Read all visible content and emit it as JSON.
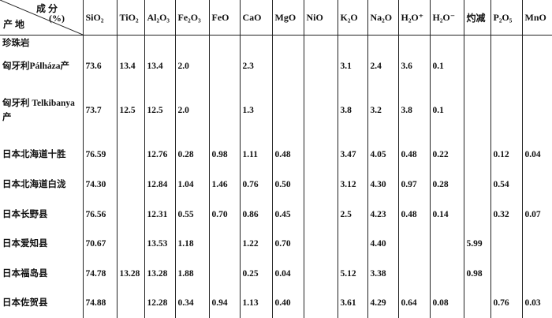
{
  "table": {
    "corner": {
      "top": "成 分",
      "unit": "(%)",
      "bottom": "产 地"
    },
    "columns": [
      "SiO₂",
      "TiO₂",
      "Al₂O₃",
      "Fe₂O₃",
      "FeO",
      "CaO",
      "MgO",
      "NiO",
      "K₂O",
      "Na₂O",
      "H₂O⁺",
      "H₂O⁻",
      "灼减",
      "P₂O₅",
      "MnO"
    ],
    "section": "珍珠岩",
    "rows": [
      {
        "label": "匈牙利Pálháza产",
        "cells": [
          "73.6",
          "13.4",
          "13.4",
          "2.0",
          null,
          "2.3",
          null,
          null,
          "3.1",
          "2.4",
          "3.6",
          "0.1",
          null,
          null,
          null
        ]
      },
      {
        "label": "匈牙利 Telkibanya产",
        "cells": [
          "73.7",
          "12.5",
          "12.5",
          "2.0",
          null,
          "1.3",
          null,
          null,
          "3.8",
          "3.2",
          "3.8",
          "0.1",
          null,
          null,
          null
        ]
      },
      {
        "label": "日本北海道十胜",
        "cells": [
          "76.59",
          null,
          "12.76",
          "0.28",
          "0.98",
          "1.11",
          "0.48",
          null,
          "3.47",
          "4.05",
          "0.48",
          "0.22",
          null,
          "0.12",
          "0.04"
        ]
      },
      {
        "label": "日本北海道白泷",
        "cells": [
          "74.30",
          null,
          "12.84",
          "1.04",
          "1.46",
          "0.76",
          "0.50",
          null,
          "3.12",
          "4.30",
          "0.97",
          "0.28",
          null,
          "0.54",
          null
        ]
      },
      {
        "label": "日本长野县",
        "cells": [
          "76.56",
          null,
          "12.31",
          "0.55",
          "0.70",
          "0.86",
          "0.45",
          null,
          "2.5",
          "4.23",
          "0.48",
          "0.14",
          null,
          "0.32",
          "0.07"
        ]
      },
      {
        "label": "日本爱知县",
        "cells": [
          "70.67",
          null,
          "13.53",
          "1.18",
          null,
          "1.22",
          "0.70",
          null,
          null,
          "4.40",
          null,
          null,
          "5.99",
          null,
          null
        ]
      },
      {
        "label": "日本福岛县",
        "cells": [
          "74.78",
          "13.28",
          "13.28",
          "1.88",
          null,
          "0.25",
          "0.04",
          null,
          "5.12",
          "3.38",
          null,
          null,
          "0.98",
          null,
          null
        ]
      },
      {
        "label": "日本佐贺县",
        "cells": [
          "74.88",
          null,
          "12.28",
          "0.34",
          "0.94",
          "1.13",
          "0.40",
          null,
          "3.61",
          "4.29",
          "0.64",
          "0.08",
          null,
          "0.76",
          "0.03"
        ]
      }
    ]
  }
}
